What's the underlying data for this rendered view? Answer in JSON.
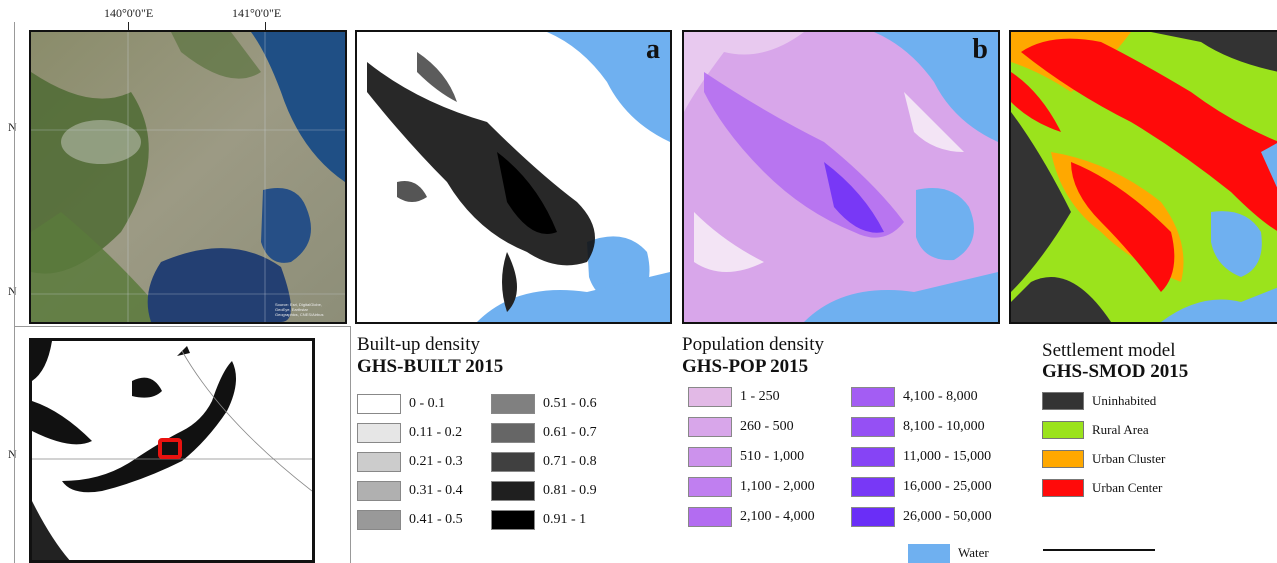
{
  "coordinates": {
    "top_labels": [
      "140°0'0\"E",
      "141°0'0\"E"
    ],
    "left_labels": [
      "N",
      "N",
      "N"
    ]
  },
  "satellite_panel": {
    "credit": [
      "Source: Esri, DigitalGlobe,",
      "GeoEye, Earthstar",
      "Geographics, CNES/Airbus"
    ]
  },
  "panels": {
    "a_label": "a",
    "b_label": "b"
  },
  "colors": {
    "water": "#6fb0f0",
    "inset_highlight": "#e8120f",
    "population_palette": [
      "#e2b9e6",
      "#d8a6ea",
      "#cc92ec",
      "#c07ff0",
      "#b36cf1",
      "#a35df3",
      "#9550f4",
      "#8644f5",
      "#7838f6",
      "#6a2ef7"
    ],
    "settlement_palette": [
      "#333333",
      "#9be31c",
      "#ffa800",
      "#ff0a0a"
    ]
  },
  "built_legend": {
    "title": "Built-up density",
    "subtitle": "GHS-BUILT 2015",
    "items": [
      {
        "label": "0 - 0.1",
        "color": "#ffffff"
      },
      {
        "label": "0.11 - 0.2",
        "color": "#e6e6e6"
      },
      {
        "label": "0.21 - 0.3",
        "color": "#cccccc"
      },
      {
        "label": "0.31 - 0.4",
        "color": "#b0b0b0"
      },
      {
        "label": "0.41 - 0.5",
        "color": "#999999"
      },
      {
        "label": "0.51 - 0.6",
        "color": "#808080"
      },
      {
        "label": "0.61 - 0.7",
        "color": "#666666"
      },
      {
        "label": "0.71 - 0.8",
        "color": "#404040"
      },
      {
        "label": "0.81 - 0.9",
        "color": "#1f1f1f"
      },
      {
        "label": "0.91 - 1",
        "color": "#000000"
      }
    ]
  },
  "population_legend": {
    "title": "Population density",
    "subtitle": "GHS-POP 2015",
    "items": [
      {
        "label": "1 - 250"
      },
      {
        "label": "260 - 500"
      },
      {
        "label": "510 - 1,000"
      },
      {
        "label": "1,100 - 2,000"
      },
      {
        "label": "2,100 - 4,000"
      },
      {
        "label": "4,100 - 8,000"
      },
      {
        "label": "8,100 - 10,000"
      },
      {
        "label": "11,000 - 15,000"
      },
      {
        "label": "16,000 - 25,000"
      },
      {
        "label": "26,000 - 50,000"
      }
    ]
  },
  "settlement_legend": {
    "title": "Settlement model",
    "subtitle": "GHS-SMOD 2015",
    "items": [
      {
        "label": "Uninhabited"
      },
      {
        "label": "Rural Area"
      },
      {
        "label": "Urban Cluster"
      },
      {
        "label": "Urban Center"
      }
    ]
  },
  "water_legend": {
    "label": "Water"
  }
}
